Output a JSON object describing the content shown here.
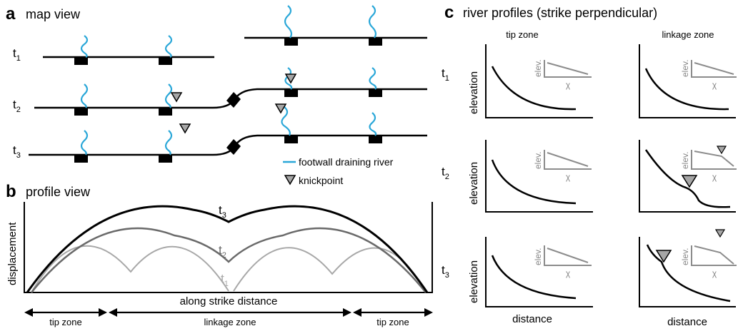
{
  "panels": {
    "a": {
      "letter": "a",
      "title": "map view"
    },
    "b": {
      "letter": "b",
      "title": "profile view"
    },
    "c": {
      "letter": "c",
      "title": "river profiles (strike perpendicular)"
    }
  },
  "time_steps": {
    "t1": {
      "base": "t",
      "sub": "1"
    },
    "t2": {
      "base": "t",
      "sub": "2"
    },
    "t3": {
      "base": "t",
      "sub": "3"
    }
  },
  "legend": {
    "river": "footwall draining river",
    "knickpoint": "knickpoint"
  },
  "profile": {
    "ylabel": "displacement",
    "xlabel": "along strike distance",
    "zones": [
      "tip zone",
      "linkage zone",
      "tip zone"
    ]
  },
  "river_profiles": {
    "columns": [
      "tip zone",
      "linkage zone"
    ],
    "ylabel": "elevation",
    "xlabel": "distance",
    "inset_ylabel": "elev.",
    "inset_xlabel": "χ"
  },
  "colors": {
    "river": "#2aa7d8",
    "fault": "#000000",
    "t1_curve": "#a8a8a8",
    "t2_curve": "#6a6a6a",
    "t3_curve": "#000000",
    "inset": "#8c8c8c",
    "knickpoint_fill": "#a6a6a6"
  }
}
